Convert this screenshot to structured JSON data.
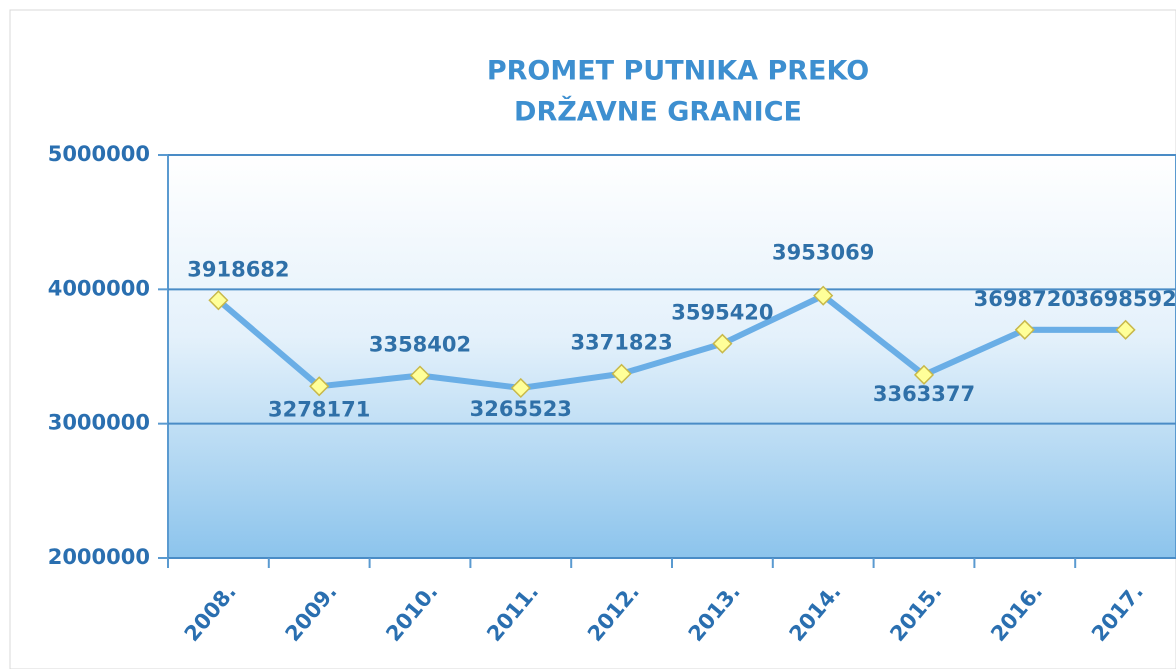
{
  "chart_data": {
    "type": "line",
    "title": [
      "PROMET PUTNIKA PREKO",
      "DRŽAVNE GRANICE"
    ],
    "categories": [
      "2008.",
      "2009.",
      "2010.",
      "2011.",
      "2012.",
      "2013.",
      "2014.",
      "2015.",
      "2016.",
      "2017."
    ],
    "values": [
      3918682,
      3278171,
      3358402,
      3265523,
      3371823,
      3595420,
      3953069,
      3363377,
      3698720,
      3698592
    ],
    "color": "#6aaee6",
    "marker_color": "#ffff99",
    "ylim": [
      2000000,
      5000000
    ],
    "yticks": [
      2000000,
      3000000,
      4000000,
      5000000
    ],
    "grid": true
  }
}
